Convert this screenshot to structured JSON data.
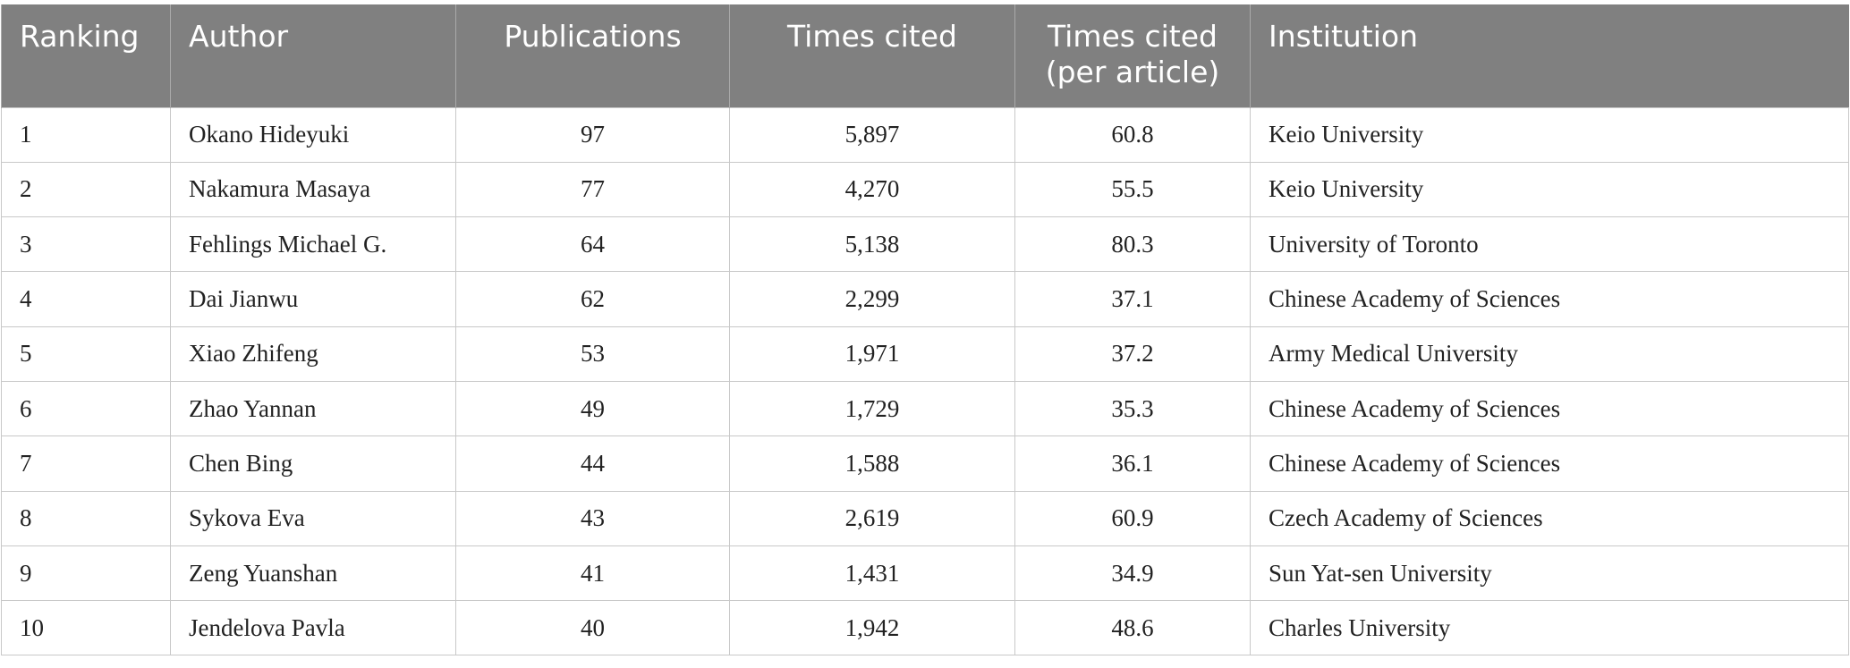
{
  "table": {
    "header": [
      "Ranking",
      "Author",
      "Publications",
      "Times cited",
      "Times cited (per article)",
      "Institution"
    ],
    "rows": [
      [
        "1",
        "Okano Hideyuki",
        "97",
        "5,897",
        "60.8",
        "Keio University"
      ],
      [
        "2",
        "Nakamura Masaya",
        "77",
        "4,270",
        "55.5",
        "Keio University"
      ],
      [
        "3",
        "Fehlings Michael G.",
        "64",
        "5,138",
        "80.3",
        "University of Toronto"
      ],
      [
        "4",
        "Dai Jianwu",
        "62",
        "2,299",
        "37.1",
        "Chinese Academy of Sciences"
      ],
      [
        "5",
        "Xiao Zhifeng",
        "53",
        "1,971",
        "37.2",
        "Army Medical University"
      ],
      [
        "6",
        "Zhao Yannan",
        "49",
        "1,729",
        "35.3",
        "Chinese Academy of Sciences"
      ],
      [
        "7",
        "Chen Bing",
        "44",
        "1,588",
        "36.1",
        "Chinese Academy of Sciences"
      ],
      [
        "8",
        "Sykova Eva",
        "43",
        "2,619",
        "60.9",
        "Czech Academy of Sciences"
      ],
      [
        "9",
        "Zeng Yuanshan",
        "41",
        "1,431",
        "34.9",
        "Sun Yat-sen University"
      ],
      [
        "10",
        "Jendelova Pavla",
        "40",
        "1,942",
        "48.6",
        "Charles University"
      ]
    ]
  }
}
